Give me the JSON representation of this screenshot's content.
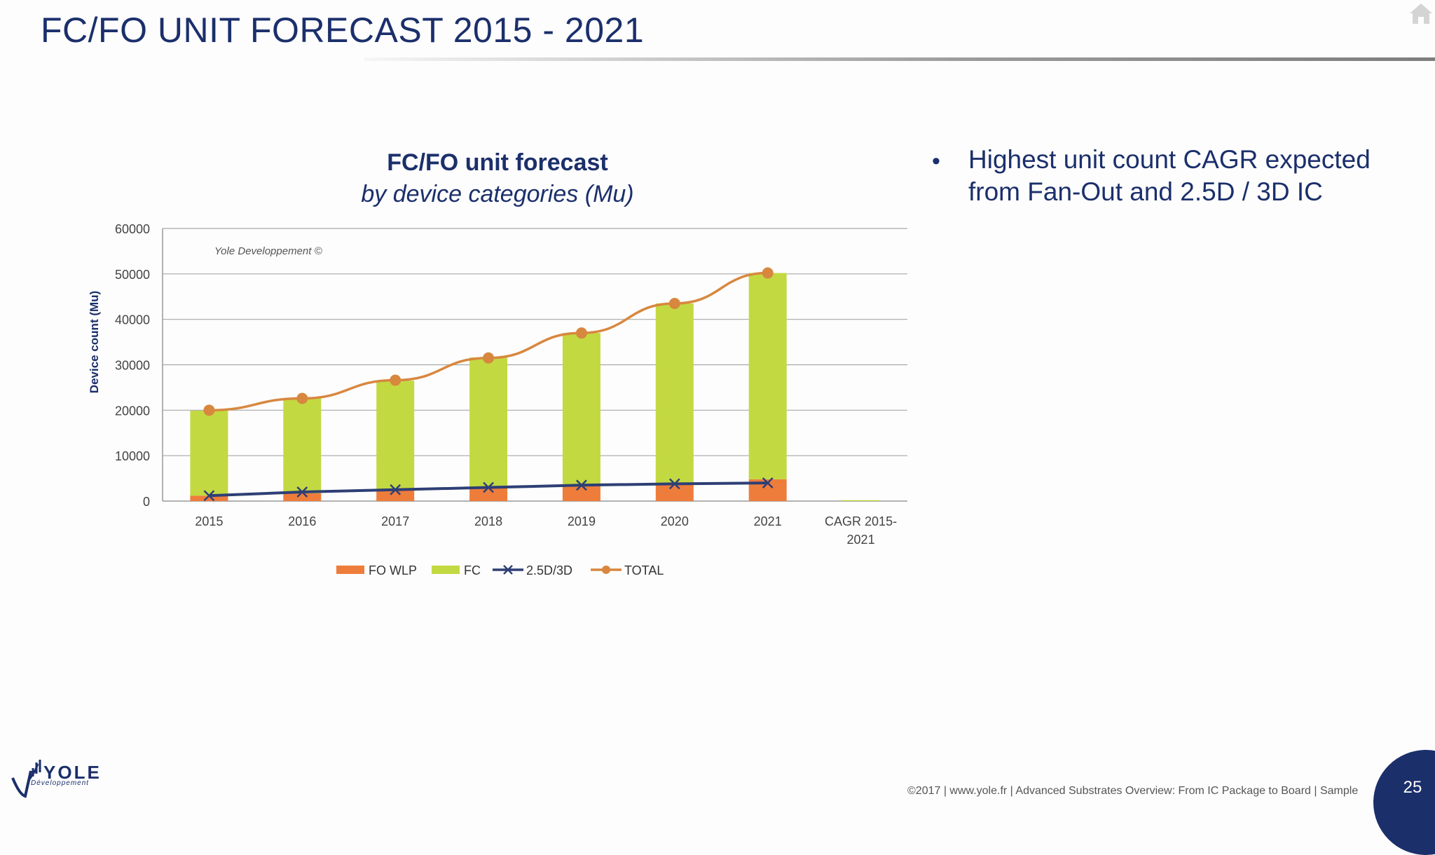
{
  "slide": {
    "title": "FC/FO UNIT FORECAST 2015 - 2021",
    "bullet": "Highest unit count CAGR expected from Fan-Out and 2.5D / 3D IC",
    "bullet_marker": "•",
    "footer": "©2017  | www.yole.fr | Advanced Substrates Overview: From IC Package to Board | Sample",
    "page_number": "25",
    "logo_word": "YOLE",
    "logo_sub": "Développement",
    "home_icon": "home-icon"
  },
  "chart_data": {
    "type": "bar",
    "title": "FC/FO unit forecast",
    "subtitle": "by device categories (Mu)",
    "watermark": "Yole Developpement ©",
    "ylabel": "Device count (Mu)",
    "xlabel": "",
    "ylim": [
      0,
      60000
    ],
    "yticks": [
      "0",
      "10000",
      "20000",
      "30000",
      "40000",
      "50000",
      "60000"
    ],
    "categories": [
      "2015",
      "2016",
      "2017",
      "2018",
      "2019",
      "2020",
      "2021",
      "CAGR 2015-2021"
    ],
    "grid": true,
    "legend_position": "bottom",
    "series": [
      {
        "name": "FO WLP",
        "kind": "stacked-bar",
        "color": "#ee7d3b",
        "values": [
          1200,
          1700,
          2500,
          3000,
          3500,
          4000,
          4800,
          null
        ]
      },
      {
        "name": "FC",
        "kind": "stacked-bar",
        "color": "#c3d941",
        "values": [
          18700,
          21000,
          24000,
          28600,
          33500,
          39500,
          45400,
          200
        ]
      },
      {
        "name": "2.5D/3D",
        "kind": "line",
        "color": "#2e3f75",
        "marker": "x",
        "values": [
          1200,
          2000,
          2500,
          3000,
          3500,
          3800,
          4000,
          null
        ]
      },
      {
        "name": "TOTAL",
        "kind": "line",
        "color": "#d8873f",
        "marker": "circle",
        "values": [
          20000,
          22600,
          26600,
          31500,
          37000,
          43500,
          50200,
          null
        ]
      }
    ]
  }
}
